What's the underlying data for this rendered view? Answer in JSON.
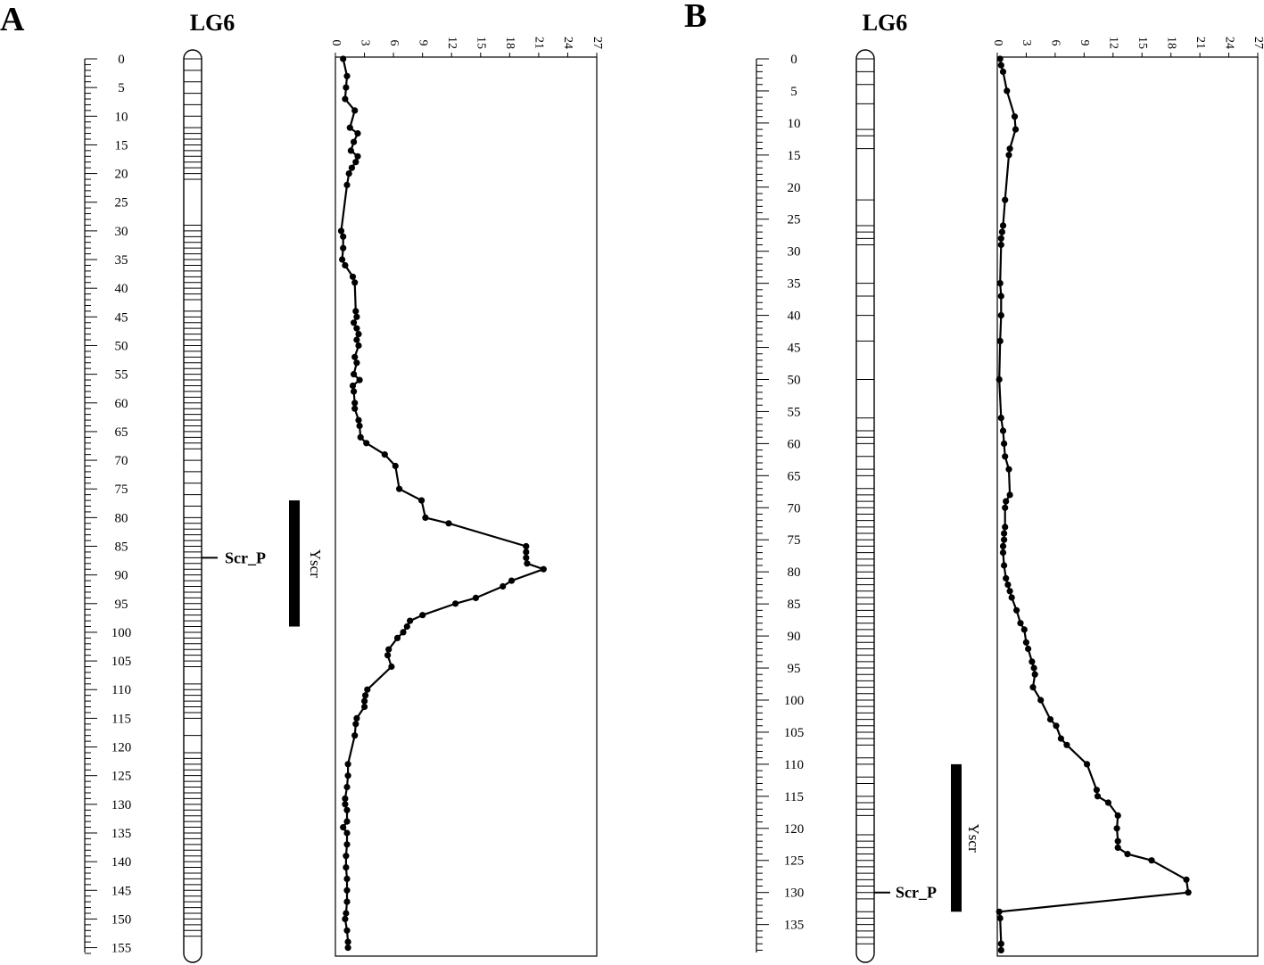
{
  "chart_data": [
    {
      "panel": "A",
      "type": "line",
      "title": "LG6",
      "cm_ticks": [
        0,
        5,
        10,
        15,
        20,
        25,
        30,
        35,
        40,
        45,
        50,
        55,
        60,
        65,
        70,
        75,
        80,
        85,
        90,
        95,
        100,
        105,
        110,
        115,
        120,
        125,
        130,
        135,
        140,
        145,
        150,
        155
      ],
      "cm_range": [
        0,
        156
      ],
      "lod_ticks": [
        0,
        3,
        6,
        9,
        12,
        15,
        18,
        21,
        24,
        27
      ],
      "lod_range": [
        0,
        27
      ],
      "marker_positions": [
        0,
        2,
        4,
        6,
        8,
        10,
        12,
        13,
        14,
        15,
        16,
        17,
        18,
        19,
        20,
        21,
        29,
        30,
        31,
        32,
        33,
        34,
        35,
        36,
        37,
        38,
        39,
        40,
        41,
        42,
        44,
        45,
        46,
        47,
        48,
        49,
        50,
        51,
        52,
        53,
        54,
        55,
        56,
        57,
        58,
        59,
        60,
        61,
        62,
        63,
        64,
        65,
        66,
        67,
        68,
        70,
        72,
        74,
        76,
        78,
        80,
        81,
        82,
        83,
        84,
        85,
        86,
        87,
        88,
        89,
        90,
        91,
        92,
        93,
        94,
        95,
        96,
        97,
        98,
        99,
        100,
        101,
        102,
        103,
        104,
        105,
        106,
        109,
        110,
        111,
        112,
        113,
        114,
        115,
        118,
        121,
        122,
        123,
        124,
        125,
        126,
        127,
        128,
        129,
        130,
        131,
        132,
        133,
        134,
        135,
        136,
        137,
        138,
        139,
        140,
        141,
        142,
        143,
        144,
        145,
        146,
        147,
        148,
        149,
        150,
        151,
        152,
        153
      ],
      "marker_label": "Scr_P",
      "marker_position": 87,
      "qtl_name": "Yscr",
      "qtl_interval": [
        77,
        99
      ],
      "series": [
        {
          "cm": [
            0,
            3,
            5,
            7,
            9,
            12,
            13,
            14.5,
            16,
            17,
            18,
            19,
            20,
            22,
            30,
            31,
            33,
            35,
            36,
            38,
            39,
            44,
            45,
            46,
            47,
            48,
            49,
            50,
            52,
            53,
            55,
            56,
            57,
            58,
            60,
            61,
            63,
            64,
            66,
            67,
            69,
            71,
            75,
            77,
            80,
            81,
            85,
            86,
            87,
            88,
            89,
            91,
            92,
            94,
            95,
            97,
            98,
            99,
            100,
            101,
            103,
            104,
            106,
            110,
            111,
            112,
            113,
            115,
            116,
            118,
            123,
            125,
            127,
            129,
            130,
            131,
            133,
            134,
            135,
            137,
            139,
            141,
            143,
            145,
            147,
            149,
            150,
            152,
            154,
            155
          ],
          "lod": [
            0.8,
            1.2,
            1.1,
            1.0,
            2.0,
            1.5,
            2.3,
            1.9,
            1.6,
            2.3,
            2.1,
            1.7,
            1.4,
            1.2,
            0.6,
            0.8,
            0.8,
            0.7,
            1.0,
            1.8,
            2.0,
            2.1,
            2.2,
            1.9,
            2.2,
            2.4,
            2.2,
            2.4,
            2.0,
            2.2,
            1.9,
            2.5,
            1.8,
            1.9,
            2.0,
            2.0,
            2.4,
            2.5,
            2.6,
            3.2,
            5.1,
            6.2,
            6.6,
            8.9,
            9.3,
            11.7,
            19.7,
            19.7,
            19.7,
            19.8,
            21.5,
            18.2,
            17.3,
            14.5,
            12.4,
            9.0,
            7.7,
            7.4,
            7.0,
            6.4,
            5.5,
            5.4,
            5.8,
            3.3,
            3.1,
            3.0,
            3.0,
            2.2,
            2.1,
            2.0,
            1.3,
            1.3,
            1.2,
            1.0,
            1.0,
            1.2,
            1.2,
            0.8,
            1.2,
            1.2,
            1.1,
            1.1,
            1.2,
            1.2,
            1.2,
            1.1,
            1.0,
            1.2,
            1.3,
            1.3
          ]
        }
      ]
    },
    {
      "panel": "B",
      "type": "line",
      "title": "LG6",
      "cm_ticks": [
        0,
        5,
        10,
        15,
        20,
        25,
        30,
        35,
        40,
        45,
        50,
        55,
        60,
        65,
        70,
        75,
        80,
        85,
        90,
        95,
        100,
        105,
        110,
        115,
        120,
        125,
        130,
        135
      ],
      "cm_range": [
        0,
        139.5
      ],
      "lod_ticks": [
        0,
        3,
        6,
        9,
        12,
        15,
        18,
        21,
        24,
        27
      ],
      "lod_range": [
        0,
        27
      ],
      "marker_positions": [
        0,
        2,
        4,
        7,
        11,
        12,
        14,
        22,
        26,
        27,
        28,
        29,
        35,
        37,
        40,
        44,
        50,
        56,
        58,
        59,
        60,
        62,
        64,
        65,
        67,
        68,
        69,
        70,
        71,
        72,
        73,
        74,
        75,
        76,
        77,
        78,
        79,
        80,
        81,
        82,
        83,
        84,
        85,
        86,
        87,
        88,
        89,
        90,
        91,
        92,
        93,
        94,
        95,
        96,
        97,
        98,
        99,
        100,
        101,
        102,
        103,
        104,
        105,
        106,
        107,
        109,
        110,
        112,
        113,
        115,
        116,
        117,
        118,
        121,
        122,
        123,
        124,
        125,
        126,
        127,
        128,
        129,
        130,
        131,
        133,
        134,
        135,
        136,
        137,
        138
      ],
      "marker_label": "Scr_P",
      "marker_position": 130,
      "qtl_name": "Yscr",
      "qtl_interval": [
        110,
        133
      ],
      "series": [
        {
          "cm": [
            0,
            1,
            2,
            5,
            9,
            11,
            14,
            15,
            22,
            26,
            27,
            28,
            29,
            35,
            37,
            40,
            44,
            50,
            56,
            58,
            60,
            62,
            64,
            68,
            69,
            70,
            73,
            74,
            75,
            76,
            77,
            79,
            81,
            82,
            83,
            84,
            86,
            88,
            89,
            91,
            92,
            94,
            95,
            96,
            98,
            100,
            103,
            104,
            106,
            107,
            110,
            114,
            115,
            116,
            118,
            120,
            122,
            123,
            124,
            125,
            128,
            130,
            133,
            134,
            138,
            139
          ],
          "lod": [
            0.3,
            0.4,
            0.6,
            1.0,
            1.8,
            1.9,
            1.3,
            1.2,
            0.8,
            0.6,
            0.5,
            0.4,
            0.4,
            0.3,
            0.4,
            0.4,
            0.3,
            0.2,
            0.4,
            0.6,
            0.7,
            0.8,
            1.2,
            1.3,
            0.9,
            0.8,
            0.8,
            0.7,
            0.7,
            0.6,
            0.6,
            0.7,
            0.9,
            1.1,
            1.3,
            1.5,
            2.0,
            2.4,
            2.8,
            3.0,
            3.2,
            3.6,
            3.8,
            3.9,
            3.7,
            4.5,
            5.5,
            6.1,
            6.6,
            7.2,
            9.3,
            10.3,
            10.4,
            11.5,
            12.5,
            12.4,
            12.5,
            12.5,
            13.5,
            16.0,
            19.6,
            19.8,
            0.2,
            0.3,
            0.4,
            0.4
          ]
        }
      ]
    }
  ]
}
